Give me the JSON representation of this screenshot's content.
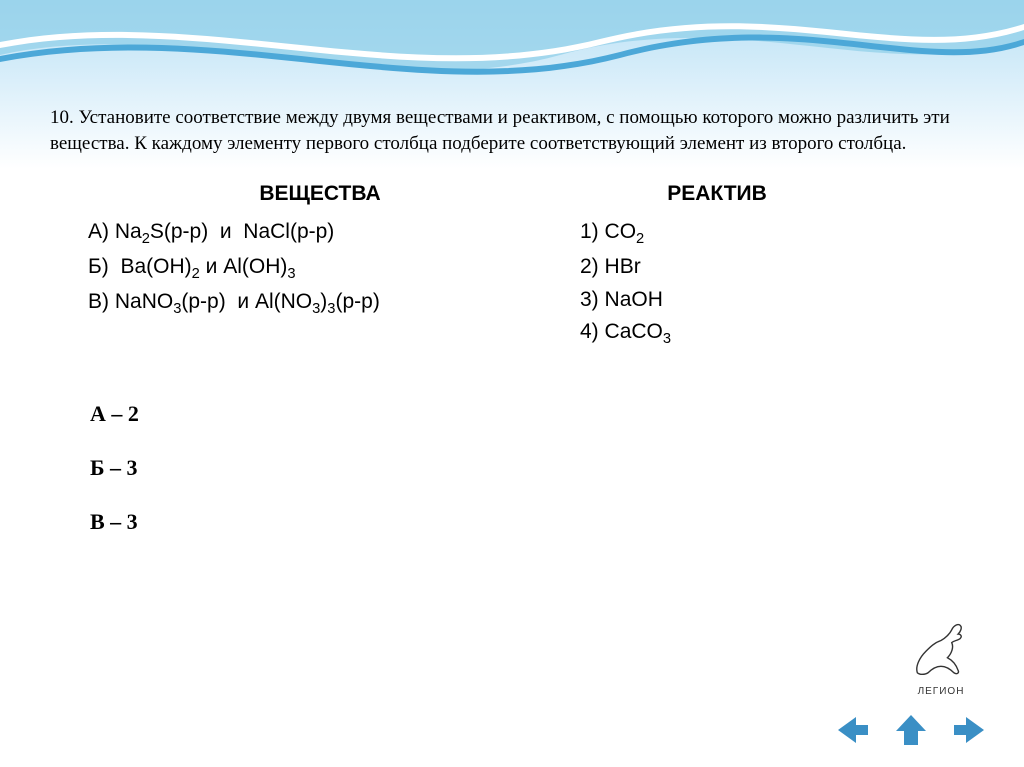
{
  "colors": {
    "bg_top": "#b8e0f5",
    "bg_bottom": "#ffffff",
    "wave_blue": "#5ab4e0",
    "wave_white": "#ffffff",
    "text": "#000000",
    "arrow": "#3a8fc5",
    "logo_text": "#333333"
  },
  "question": {
    "number": "10.",
    "text": "Установите соответствие между двумя веществами и реактивом, с помощью которого можно различить эти вещества. К каждому элементу первого столбца подберите соответствующий элемент из второго столбца."
  },
  "left": {
    "header": "ВЕЩЕСТВА",
    "items": [
      {
        "label": "А)",
        "formula_html": "Na<sub>2</sub>S(р-р)  и  NaCl(р-р)"
      },
      {
        "label": "Б)",
        "formula_html": " Ba(OH)<sub>2</sub> и Al(OH)<sub>3</sub>"
      },
      {
        "label": "В)",
        "formula_html": "NaNO<sub>3</sub>(р-р)  и Al(NO<sub>3</sub>)<sub>3</sub>(р-р)"
      }
    ]
  },
  "right": {
    "header": "РЕАКТИВ",
    "items": [
      {
        "label": "1)",
        "formula_html": "CO<sub>2</sub>"
      },
      {
        "label": "2)",
        "formula_html": "HBr"
      },
      {
        "label": "3)",
        "formula_html": "NaOH"
      },
      {
        "label": "4)",
        "formula_html": "CaCO<sub>3</sub>"
      }
    ]
  },
  "answers": [
    "А – 2",
    "Б – 3",
    "В – 3"
  ],
  "logo": {
    "label": "ЛЕГИОН"
  },
  "nav": {
    "prev": "previous",
    "up": "up",
    "next": "next"
  }
}
